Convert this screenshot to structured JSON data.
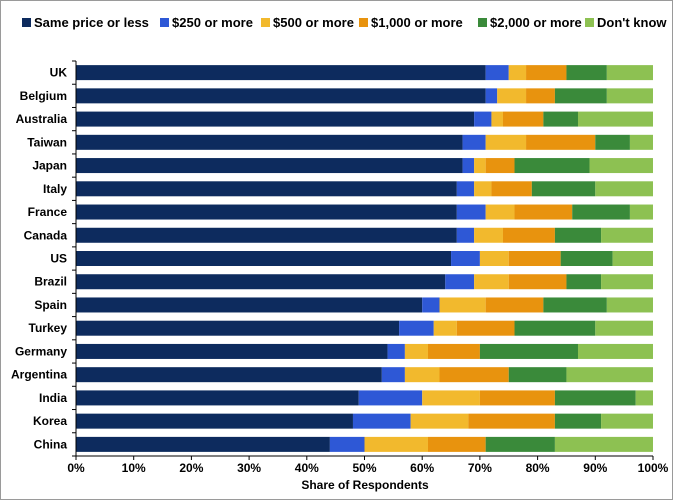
{
  "chart_data": {
    "type": "bar",
    "orientation": "horizontal",
    "stacked": "percent",
    "title": "",
    "xlabel": "Share of Respondents",
    "ylabel": "",
    "xlim": [
      0,
      100
    ],
    "x_ticks": [
      "0%",
      "10%",
      "20%",
      "30%",
      "40%",
      "50%",
      "60%",
      "70%",
      "80%",
      "90%",
      "100%"
    ],
    "grid": false,
    "legend_position": "top",
    "categories": [
      "UK",
      "Belgium",
      "Australia",
      "Taiwan",
      "Japan",
      "Italy",
      "France",
      "Canada",
      "US",
      "Brazil",
      "Spain",
      "Turkey",
      "Germany",
      "Argentina",
      "India",
      "Korea",
      "China"
    ],
    "series": [
      {
        "name": "Same price or less",
        "color": "#0d2b5e",
        "values": [
          71,
          71,
          69,
          67,
          67,
          66,
          66,
          66,
          65,
          64,
          60,
          56,
          54,
          53,
          49,
          48,
          44
        ]
      },
      {
        "name": "$250 or more",
        "color": "#2e58d6",
        "values": [
          4,
          2,
          3,
          4,
          2,
          3,
          5,
          3,
          5,
          5,
          3,
          6,
          3,
          4,
          11,
          10,
          6
        ]
      },
      {
        "name": "$500 or more",
        "color": "#f2b92d",
        "values": [
          3,
          5,
          2,
          7,
          2,
          3,
          5,
          5,
          5,
          6,
          8,
          4,
          4,
          6,
          10,
          10,
          11
        ]
      },
      {
        "name": "$1,000 or more",
        "color": "#e8930e",
        "values": [
          7,
          5,
          7,
          12,
          5,
          7,
          10,
          9,
          9,
          10,
          10,
          10,
          9,
          12,
          13,
          15,
          10
        ]
      },
      {
        "name": "$2,000 or more",
        "color": "#3a8a3a",
        "values": [
          7,
          9,
          6,
          6,
          13,
          11,
          10,
          8,
          9,
          6,
          11,
          14,
          17,
          10,
          14,
          8,
          12
        ]
      },
      {
        "name": "Don't know",
        "color": "#8dc152",
        "values": [
          8,
          8,
          13,
          4,
          11,
          10,
          4,
          9,
          7,
          9,
          8,
          10,
          13,
          15,
          3,
          9,
          17
        ]
      }
    ]
  }
}
